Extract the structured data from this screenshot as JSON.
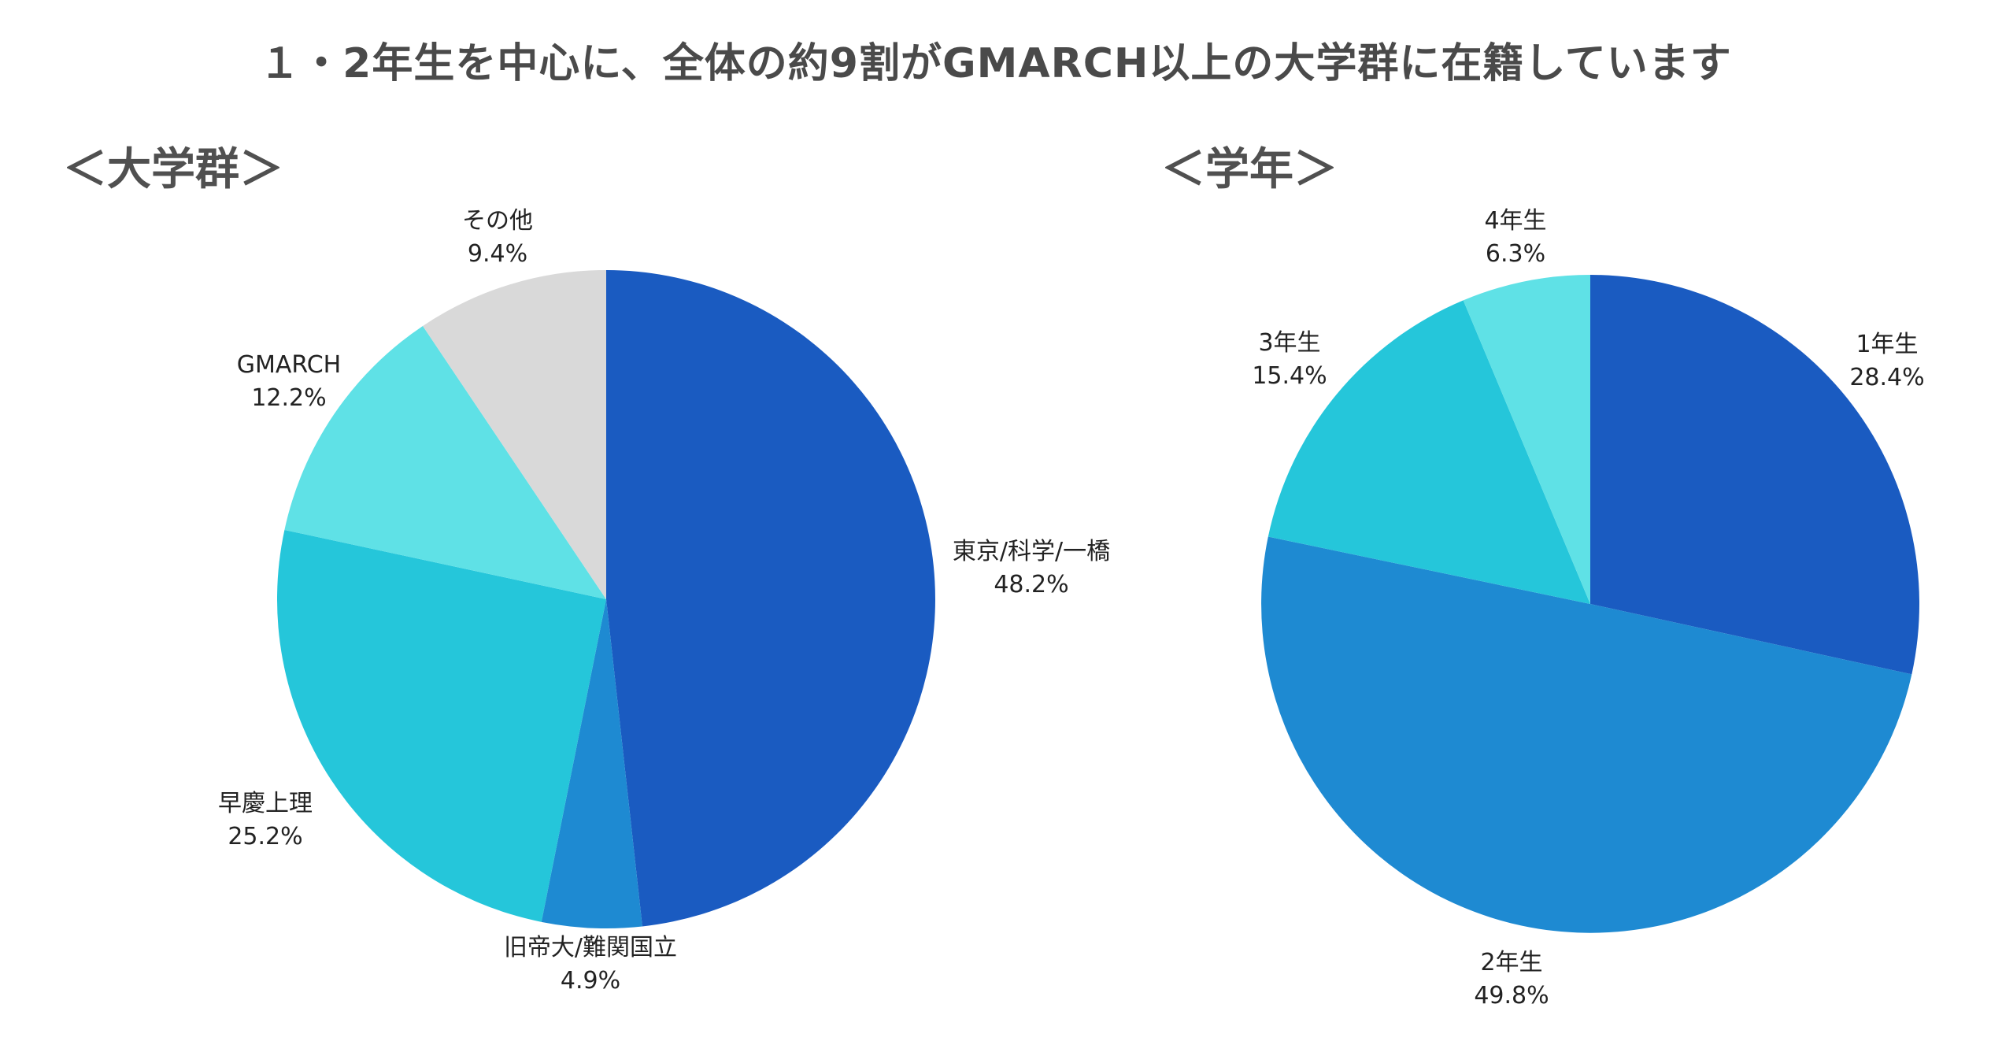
{
  "title": "１・2年生を中心に、全体の約9割がGMARCH以上の大学群に在籍しています",
  "chart_data": [
    {
      "type": "pie",
      "title": "＜大学群＞",
      "labels": [
        "東京/科学/一橋",
        "旧帝大/難関国立",
        "早慶上理",
        "GMARCH",
        "その他"
      ],
      "values": [
        48.2,
        4.9,
        25.2,
        12.2,
        9.4
      ],
      "value_labels": [
        "48.2%",
        "4.9%",
        "25.2%",
        "12.2%",
        "9.4%"
      ],
      "colors": [
        "#1a5bc1",
        "#1e8ad2",
        "#25c6da",
        "#5fe1e6",
        "#d9d9d9"
      ],
      "start": "12 o'clock, clockwise"
    },
    {
      "type": "pie",
      "title": "＜学年＞",
      "labels": [
        "1年生",
        "2年生",
        "3年生",
        "4年生"
      ],
      "values": [
        28.4,
        49.8,
        15.4,
        6.3
      ],
      "value_labels": [
        "28.4%",
        "49.8%",
        "15.4%",
        "6.3%"
      ],
      "colors": [
        "#1a5bc1",
        "#1e8ad2",
        "#25c6da",
        "#5fe1e6"
      ],
      "start": "12 o'clock, clockwise"
    }
  ]
}
